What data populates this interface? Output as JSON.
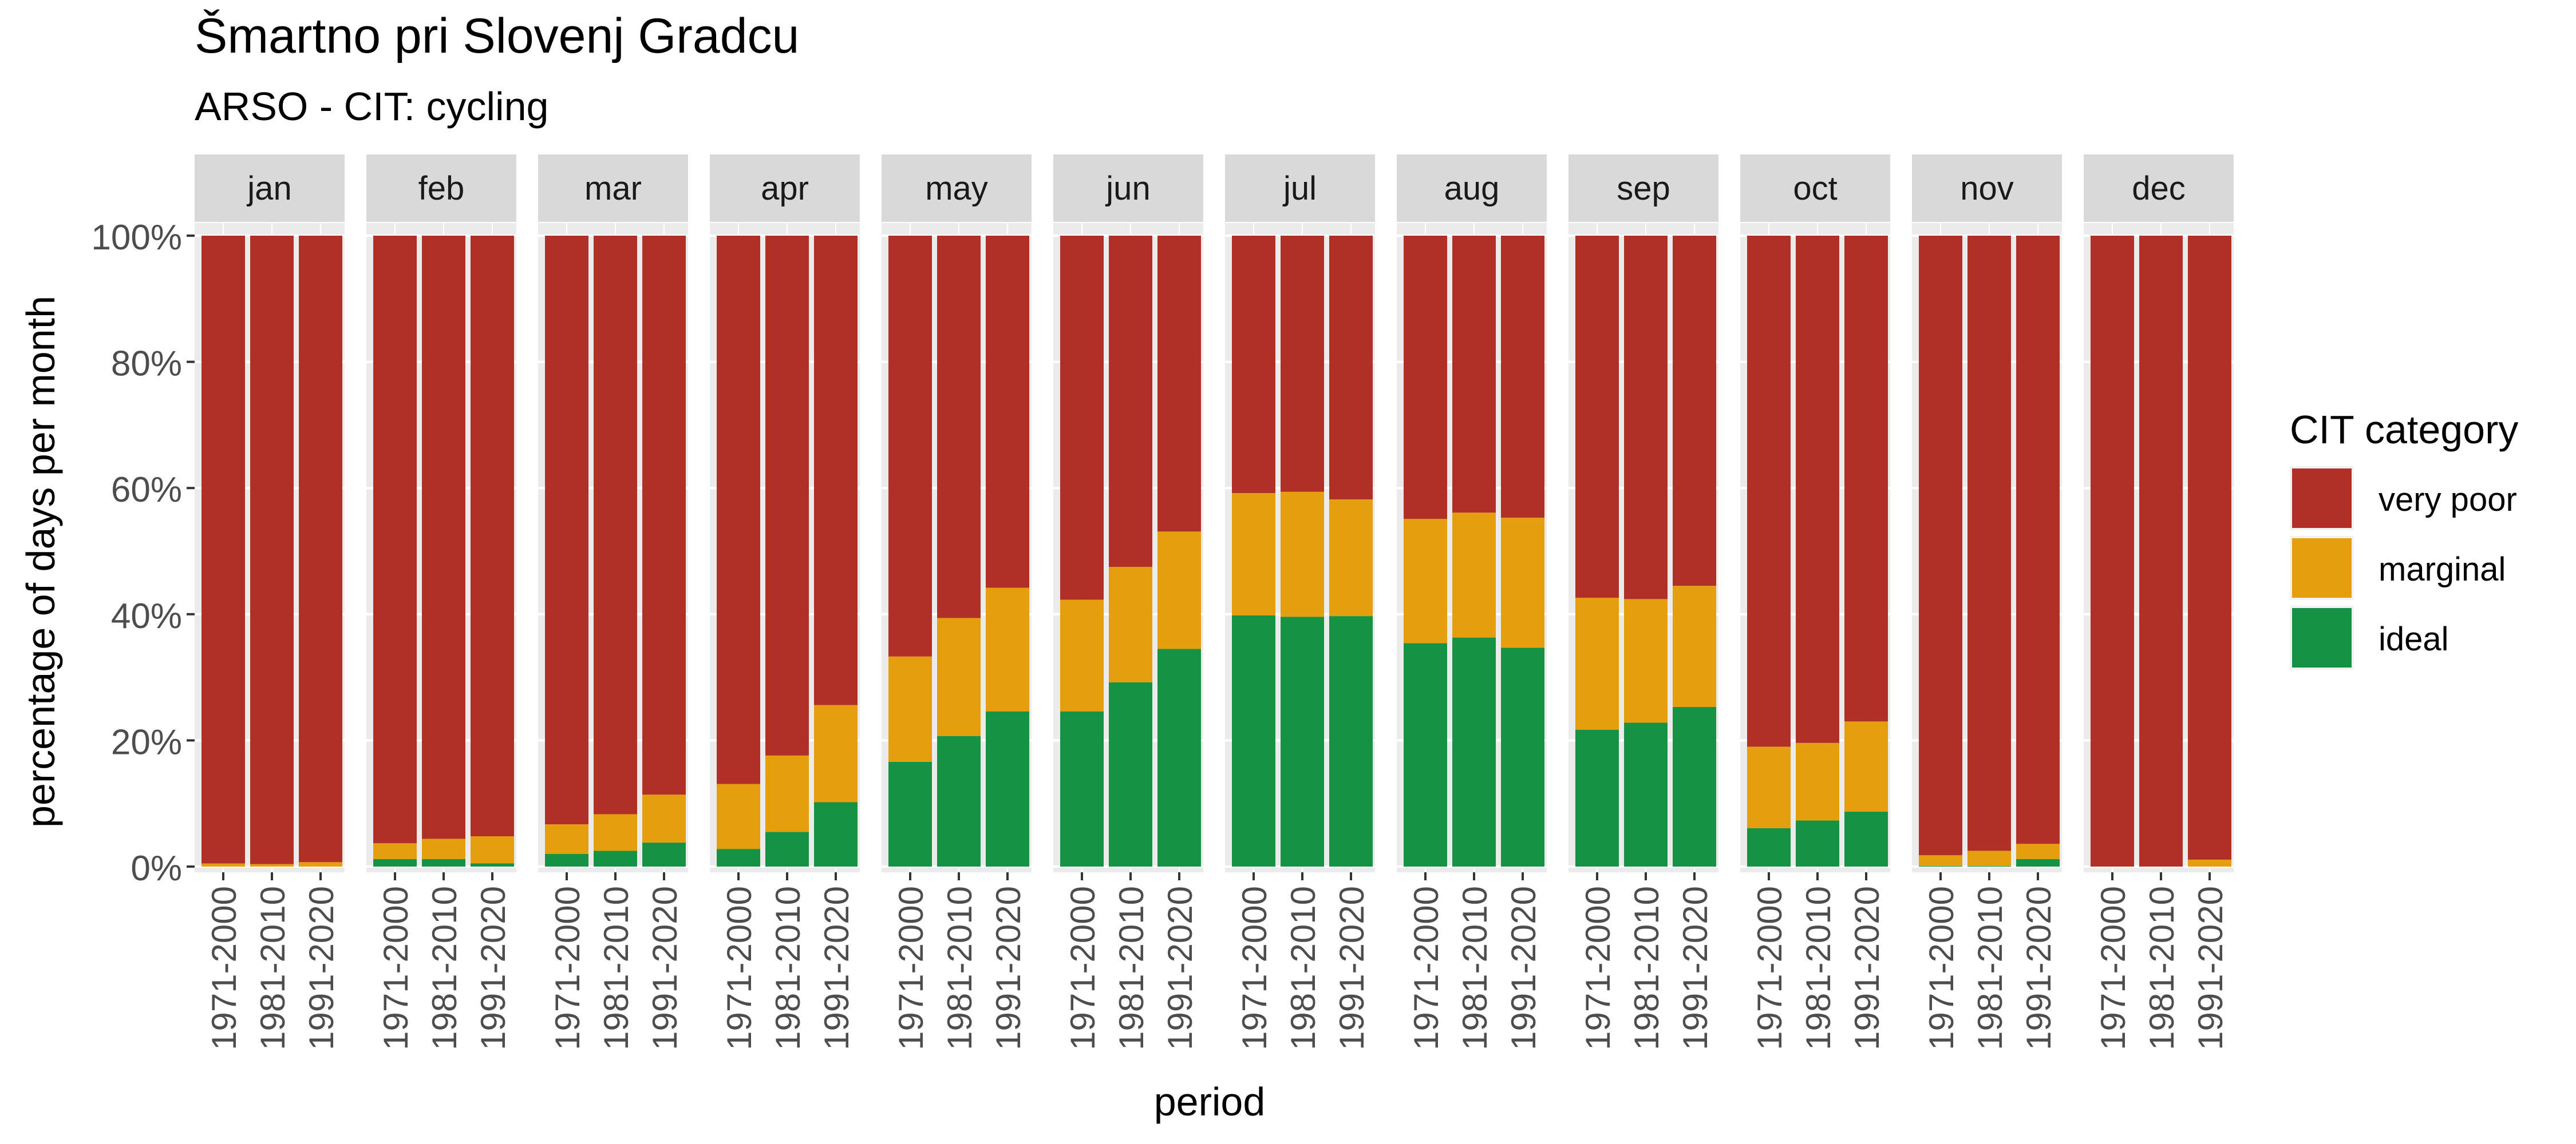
{
  "chart_data": {
    "type": "bar",
    "stacked": true,
    "faceted_by": "month",
    "title": "Šmartno pri Slovenj Gradcu",
    "subtitle": "ARSO - CIT: cycling",
    "xlabel": "period",
    "ylabel": "percentage of days per month",
    "ylim": [
      0,
      1
    ],
    "y_ticks": [
      0,
      0.2,
      0.4,
      0.6,
      0.8,
      1.0
    ],
    "y_tick_labels": [
      "0%",
      "20%",
      "40%",
      "60%",
      "80%",
      "100%"
    ],
    "facets": [
      "jan",
      "feb",
      "mar",
      "apr",
      "may",
      "jun",
      "jul",
      "aug",
      "sep",
      "oct",
      "nov",
      "dec"
    ],
    "categories": [
      "1971-2000",
      "1981-2010",
      "1991-2020"
    ],
    "legend": {
      "title": "CIT category",
      "position": "right",
      "entries": [
        "very poor",
        "marginal",
        "ideal"
      ]
    },
    "colors": {
      "very poor": "#B03027",
      "marginal": "#E49E0E",
      "ideal": "#169244"
    },
    "panel_background": "#EBEBEB",
    "strip_background": "#D9D9D9",
    "series": [
      {
        "name": "ideal",
        "values": [
          [
            0.0,
            0.0,
            0.0
          ],
          [
            0.012,
            0.012,
            0.005
          ],
          [
            0.02,
            0.025,
            0.038
          ],
          [
            0.028,
            0.055,
            0.102
          ],
          [
            0.166,
            0.207,
            0.246
          ],
          [
            0.246,
            0.292,
            0.345
          ],
          [
            0.398,
            0.396,
            0.397
          ],
          [
            0.354,
            0.363,
            0.347
          ],
          [
            0.217,
            0.228,
            0.253
          ],
          [
            0.061,
            0.073,
            0.087
          ],
          [
            0.001,
            0.001,
            0.012
          ],
          [
            0.0,
            0.0,
            0.0
          ]
        ]
      },
      {
        "name": "marginal",
        "values": [
          [
            0.005,
            0.004,
            0.007
          ],
          [
            0.025,
            0.032,
            0.043
          ],
          [
            0.047,
            0.058,
            0.076
          ],
          [
            0.103,
            0.121,
            0.154
          ],
          [
            0.167,
            0.187,
            0.196
          ],
          [
            0.177,
            0.183,
            0.186
          ],
          [
            0.194,
            0.198,
            0.185
          ],
          [
            0.197,
            0.198,
            0.206
          ],
          [
            0.209,
            0.196,
            0.192
          ],
          [
            0.129,
            0.123,
            0.143
          ],
          [
            0.017,
            0.024,
            0.024
          ],
          [
            0.0,
            0.0,
            0.011
          ]
        ]
      },
      {
        "name": "very poor",
        "values": [
          [
            0.995,
            0.996,
            0.993
          ],
          [
            0.963,
            0.956,
            0.952
          ],
          [
            0.933,
            0.917,
            0.886
          ],
          [
            0.869,
            0.824,
            0.744
          ],
          [
            0.667,
            0.606,
            0.558
          ],
          [
            0.577,
            0.525,
            0.469
          ],
          [
            0.408,
            0.406,
            0.418
          ],
          [
            0.449,
            0.439,
            0.447
          ],
          [
            0.574,
            0.576,
            0.555
          ],
          [
            0.81,
            0.804,
            0.77
          ],
          [
            0.982,
            0.975,
            0.964
          ],
          [
            1.0,
            1.0,
            0.989
          ]
        ]
      }
    ]
  }
}
